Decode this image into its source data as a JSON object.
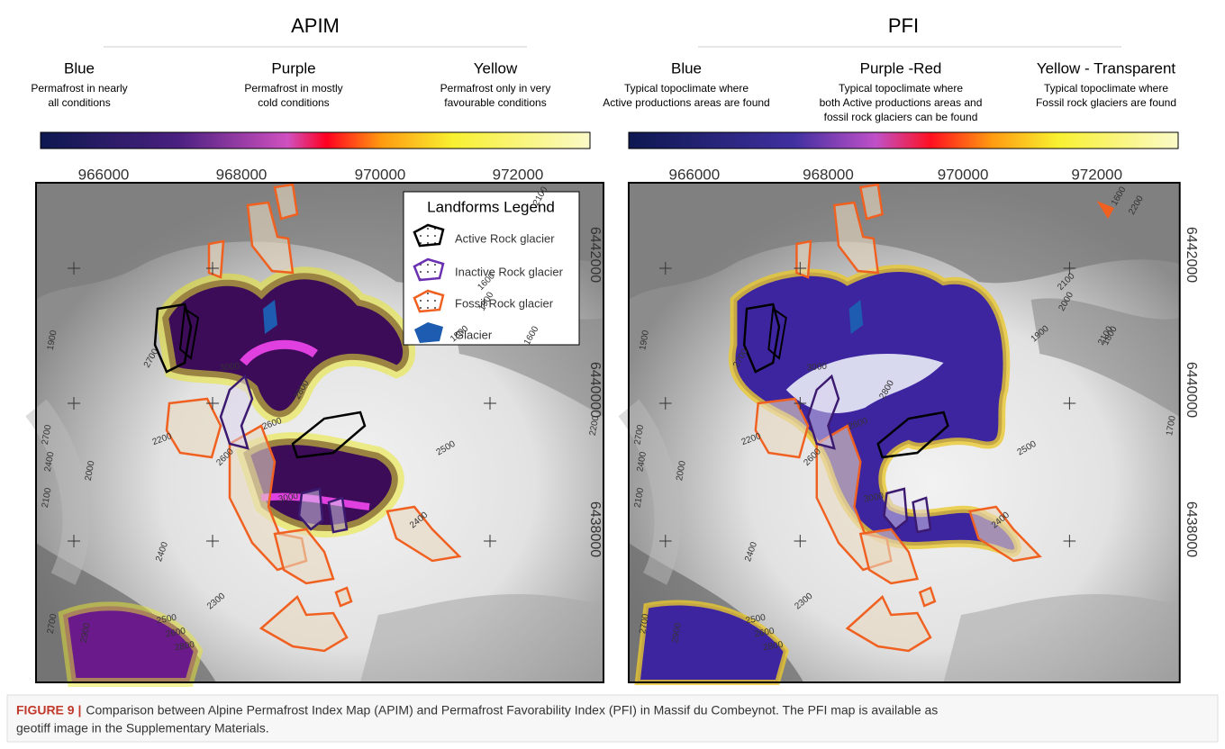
{
  "panels": [
    {
      "title": "APIM",
      "legend": [
        {
          "label": "Blue",
          "lines": [
            "Permafrost in nearly",
            "all conditions"
          ]
        },
        {
          "label": "Purple",
          "lines": [
            "Permafrost in mostly",
            "cold conditions"
          ]
        },
        {
          "label": "Yellow",
          "lines": [
            "Permafrost only  in very",
            "favourable conditions"
          ]
        }
      ],
      "xticks": [
        "966000",
        "968000",
        "970000",
        "972000"
      ],
      "yticks": [
        "6442000",
        "6440000",
        "6438000"
      ],
      "contour_labels": [
        "1900",
        "2700",
        "3000",
        "2800",
        "2600",
        "2200",
        "2700",
        "2400",
        "2000",
        "2100",
        "2600",
        "3000",
        "2500",
        "2400",
        "2400",
        "2300",
        "2500",
        "2600",
        "2800",
        "2700",
        "2900",
        "1900",
        "1600",
        "1800",
        "1600",
        "2200",
        "2100"
      ]
    },
    {
      "title": "PFI",
      "legend": [
        {
          "label": "Blue",
          "lines": [
            "Typical topoclimate where",
            "Active productions areas are found"
          ]
        },
        {
          "label": "Purple -Red",
          "lines": [
            "Typical topoclimate where",
            "both Active productions areas and",
            "fossil rock glaciers can  be found"
          ]
        },
        {
          "label": "Yellow - Transparent",
          "lines": [
            "Typical topoclimate where",
            "Fossil rock glaciers are found"
          ]
        }
      ],
      "xticks": [
        "966000",
        "968000",
        "970000",
        "972000"
      ],
      "yticks": [
        "6442000",
        "6440000",
        "6438000"
      ],
      "contour_labels": [
        "1900",
        "2700",
        "3000",
        "2800",
        "2600",
        "2200",
        "2700",
        "2400",
        "2000",
        "2100",
        "2600",
        "3000",
        "2500",
        "2400",
        "2400",
        "2300",
        "2500",
        "2600",
        "2800",
        "2700",
        "2900",
        "2000",
        "2100",
        "1900",
        "1800",
        "1700",
        "1600",
        "2200",
        "2100"
      ]
    }
  ],
  "landforms_legend": {
    "title": "Landforms Legend",
    "items": [
      "Active Rock glacier",
      "Inactive Rock glacier",
      "Fossil Rock glacier",
      "Glacier"
    ]
  },
  "caption": {
    "label": "FIGURE 9 |",
    "lines": [
      "Comparison between Alpine Permafrost Index Map (APIM) and Permafrost Favorability Index (PFI) in Massif du Combeynot. The PFI map is available as",
      "geotiff image in the Supplementary Materials."
    ]
  }
}
